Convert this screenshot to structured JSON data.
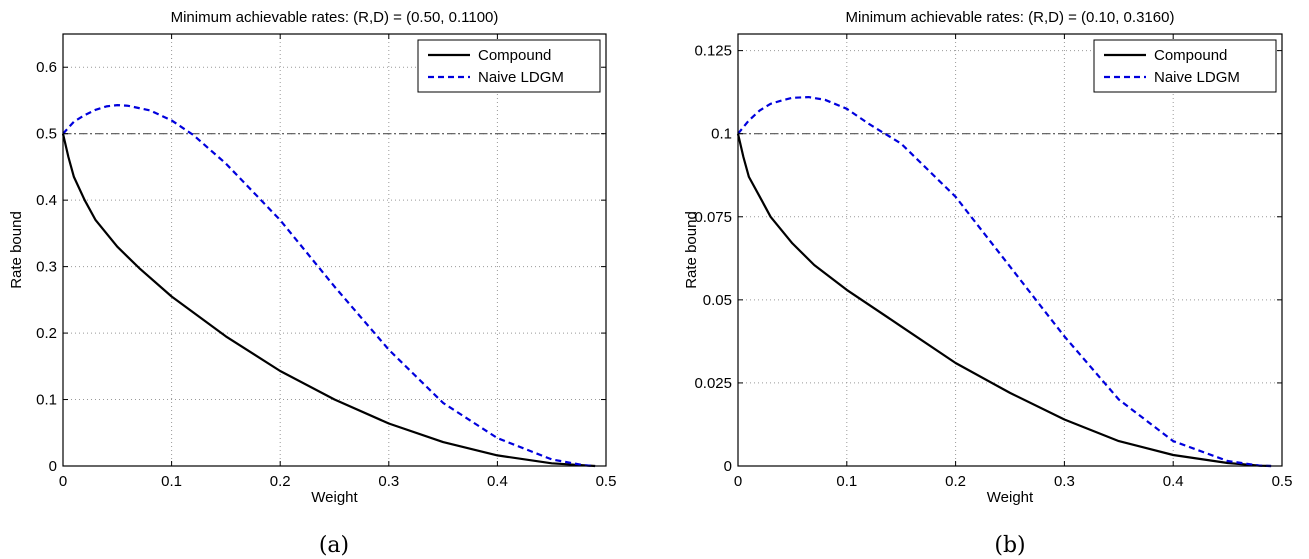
{
  "chart_data": [
    {
      "type": "line",
      "title": "Minimum achievable rates: (R,D) = (0.50, 0.1100)",
      "xlabel": "Weight",
      "ylabel": "Rate bound",
      "xlim": [
        0,
        0.5
      ],
      "ylim": [
        0,
        0.65
      ],
      "xticks": [
        "0",
        "0.1",
        "0.2",
        "0.3",
        "0.4",
        "0.5"
      ],
      "xtick_values": [
        0,
        0.1,
        0.2,
        0.3,
        0.4,
        0.5
      ],
      "yticks": [
        "0",
        "0.1",
        "0.2",
        "0.3",
        "0.4",
        "0.5",
        "0.6"
      ],
      "ytick_values": [
        0,
        0.1,
        0.2,
        0.3,
        0.4,
        0.5,
        0.6
      ],
      "grid": true,
      "legend": "top-right",
      "reference_line": {
        "y": 0.5,
        "style": "dash-dot",
        "color": "#555555"
      },
      "panel_label": "(a)",
      "series": [
        {
          "name": "Compound",
          "color": "#000000",
          "style": "solid",
          "x": [
            0,
            0.005,
            0.01,
            0.02,
            0.03,
            0.05,
            0.07,
            0.1,
            0.15,
            0.2,
            0.25,
            0.3,
            0.35,
            0.4,
            0.45,
            0.48,
            0.49
          ],
          "y": [
            0.5,
            0.465,
            0.435,
            0.4,
            0.37,
            0.33,
            0.298,
            0.255,
            0.195,
            0.143,
            0.1,
            0.064,
            0.036,
            0.016,
            0.004,
            0.001,
            0
          ]
        },
        {
          "name": "Naive LDGM",
          "color": "#0000dd",
          "style": "dashed",
          "x": [
            0,
            0.01,
            0.02,
            0.03,
            0.04,
            0.05,
            0.06,
            0.08,
            0.1,
            0.12,
            0.15,
            0.2,
            0.25,
            0.3,
            0.35,
            0.4,
            0.45,
            0.48,
            0.49
          ],
          "y": [
            0.5,
            0.518,
            0.528,
            0.536,
            0.541,
            0.543,
            0.542,
            0.535,
            0.52,
            0.498,
            0.455,
            0.37,
            0.27,
            0.175,
            0.095,
            0.042,
            0.01,
            0.001,
            0
          ]
        }
      ]
    },
    {
      "type": "line",
      "title": "Minimum achievable rates: (R,D) = (0.10, 0.3160)",
      "xlabel": "Weight",
      "ylabel": "Rate bound",
      "xlim": [
        0,
        0.5
      ],
      "ylim": [
        0,
        0.13
      ],
      "xticks": [
        "0",
        "0.1",
        "0.2",
        "0.3",
        "0.4",
        "0.5"
      ],
      "xtick_values": [
        0,
        0.1,
        0.2,
        0.3,
        0.4,
        0.5
      ],
      "yticks": [
        "0",
        "0.025",
        "0.05",
        "0.075",
        "0.1",
        "0.125"
      ],
      "ytick_values": [
        0,
        0.025,
        0.05,
        0.075,
        0.1,
        0.125
      ],
      "grid": true,
      "legend": "top-right",
      "reference_line": {
        "y": 0.1,
        "style": "dash-dot",
        "color": "#555555"
      },
      "panel_label": "(b)",
      "series": [
        {
          "name": "Compound",
          "color": "#000000",
          "style": "solid",
          "x": [
            0,
            0.005,
            0.01,
            0.02,
            0.03,
            0.05,
            0.07,
            0.1,
            0.15,
            0.2,
            0.25,
            0.3,
            0.35,
            0.4,
            0.45,
            0.48,
            0.49
          ],
          "y": [
            0.1,
            0.093,
            0.087,
            0.081,
            0.075,
            0.067,
            0.0605,
            0.053,
            0.042,
            0.031,
            0.022,
            0.014,
            0.0075,
            0.0033,
            0.0009,
            0.0001,
            0
          ]
        },
        {
          "name": "Naive LDGM",
          "color": "#0000dd",
          "style": "dashed",
          "x": [
            0,
            0.01,
            0.02,
            0.03,
            0.04,
            0.05,
            0.065,
            0.08,
            0.1,
            0.12,
            0.15,
            0.2,
            0.25,
            0.3,
            0.35,
            0.4,
            0.45,
            0.48,
            0.49
          ],
          "y": [
            0.1,
            0.104,
            0.107,
            0.109,
            0.11,
            0.1108,
            0.111,
            0.1102,
            0.1075,
            0.103,
            0.097,
            0.081,
            0.06,
            0.039,
            0.02,
            0.0075,
            0.0015,
            0.0001,
            0
          ]
        }
      ]
    }
  ]
}
